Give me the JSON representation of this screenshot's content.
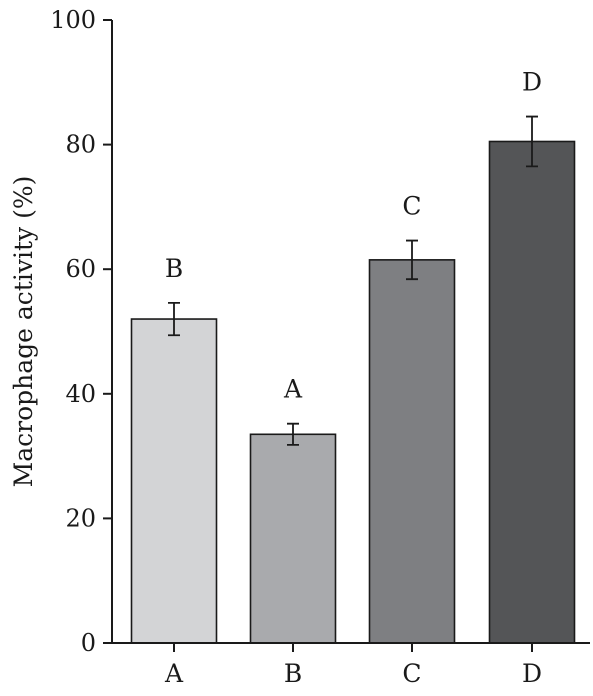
{
  "chart_data": {
    "type": "bar",
    "title": "",
    "xlabel": "",
    "ylabel": "Macrophage activity (%)",
    "ylim": [
      0,
      100
    ],
    "yticks": [
      0,
      20,
      40,
      60,
      80,
      100
    ],
    "grid": false,
    "legend": "none",
    "categories": [
      "A",
      "B",
      "C",
      "D"
    ],
    "values": [
      52,
      33.5,
      61.5,
      80.5
    ],
    "error": [
      2.6,
      1.7,
      3.1,
      4.0
    ],
    "significance_labels": [
      "B",
      "A",
      "C",
      "D"
    ],
    "colors": [
      "#d3d4d6",
      "#a9aaad",
      "#7e7f82",
      "#545557"
    ]
  }
}
